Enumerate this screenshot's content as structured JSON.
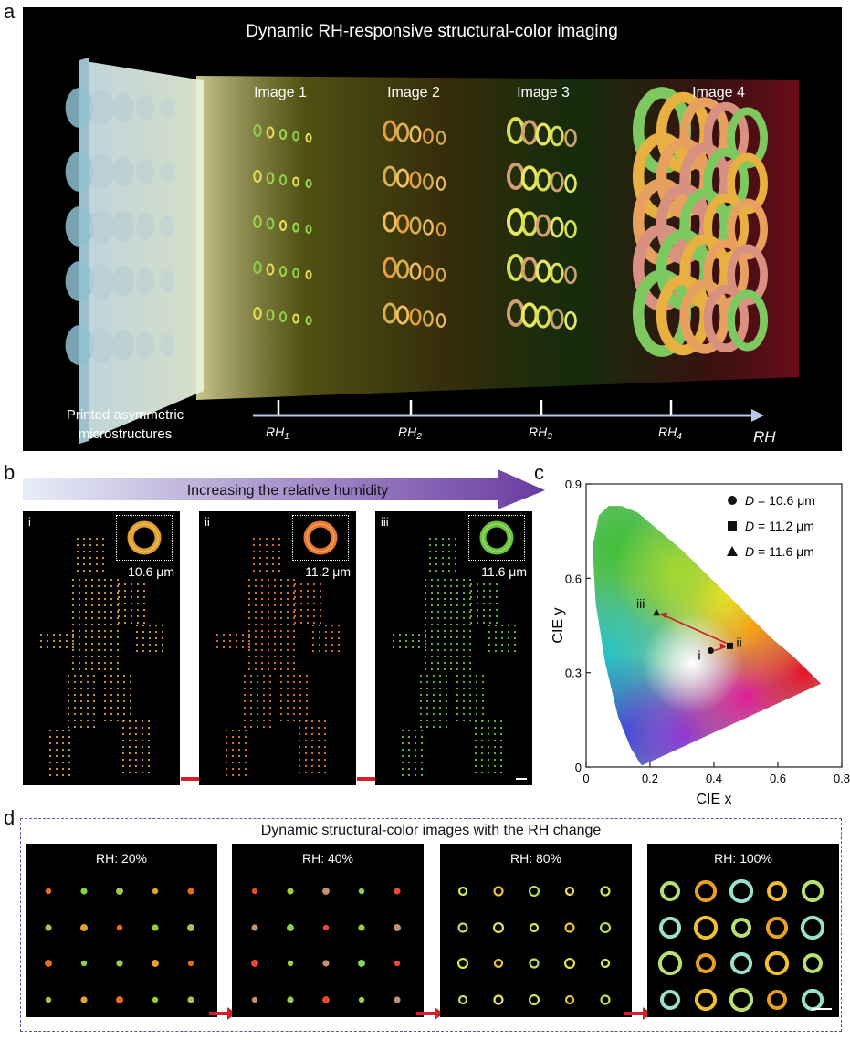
{
  "panel_labels": {
    "a": "a",
    "b": "b",
    "c": "c",
    "d": "d"
  },
  "panel_a": {
    "title": "Dynamic RH-responsive structural-color imaging",
    "images": [
      "Image 1",
      "Image 2",
      "Image 3",
      "Image 4"
    ],
    "left_caption_line1": "Printed asymmetric",
    "left_caption_line2": "microstructures",
    "axis_ticks": [
      {
        "base": "RH",
        "sub": "1"
      },
      {
        "base": "RH",
        "sub": "2"
      },
      {
        "base": "RH",
        "sub": "3"
      },
      {
        "base": "RH",
        "sub": "4"
      }
    ],
    "axis_label": "RH"
  },
  "panel_b": {
    "arrow_text": "Increasing the relative humidity",
    "images": [
      {
        "roman": "i",
        "size": "10.6 μm",
        "color": "#e0a030"
      },
      {
        "roman": "ii",
        "size": "11.2 μm",
        "color": "#e8782e"
      },
      {
        "roman": "iii",
        "size": "11.6 μm",
        "color": "#6cc43c"
      }
    ]
  },
  "panel_d": {
    "title": "Dynamic structural-color images with the RH change",
    "images": [
      {
        "label": "RH: 20%"
      },
      {
        "label": "RH: 40%"
      },
      {
        "label": "RH: 80%"
      },
      {
        "label": "RH: 100%"
      }
    ]
  },
  "chart_data": {
    "type": "scatter",
    "xlabel": "CIE x",
    "ylabel": "CIE y",
    "xlim": [
      0,
      0.8
    ],
    "ylim": [
      0,
      0.9
    ],
    "xticks": [
      "0",
      "0.2",
      "0.4",
      "0.6",
      "0.8"
    ],
    "yticks": [
      "0",
      "0.3",
      "0.6",
      "0.9"
    ],
    "series": [
      {
        "name": "D = 10.6 μm",
        "marker": "circle",
        "label": "i",
        "x": 0.39,
        "y": 0.37
      },
      {
        "name": "D = 11.2 μm",
        "marker": "square",
        "label": "ii",
        "x": 0.45,
        "y": 0.385
      },
      {
        "name": "D = 11.6 μm",
        "marker": "triangle",
        "label": "iii",
        "x": 0.22,
        "y": 0.49
      }
    ],
    "legend": [
      "D = 10.6 μm",
      "D = 11.2 μm",
      "D = 11.6 μm"
    ],
    "legend_position": "top-right"
  }
}
